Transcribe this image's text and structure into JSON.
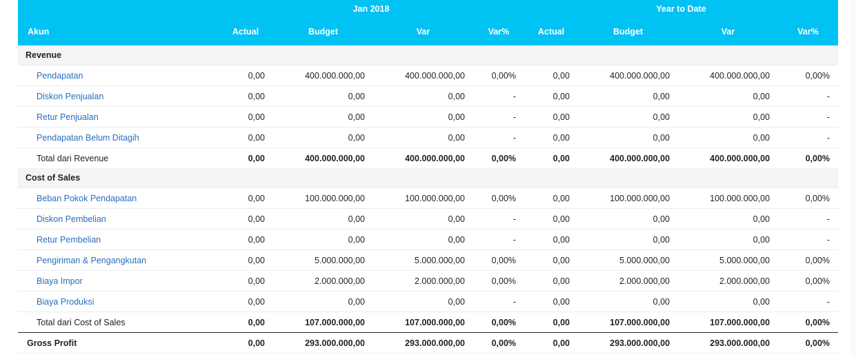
{
  "header": {
    "period_label": "Jan 2018",
    "ytd_label": "Year to Date",
    "columns": {
      "akun": "Akun",
      "actual": "Actual",
      "budget": "Budget",
      "var": "Var",
      "var_pct": "Var%"
    }
  },
  "sections": {
    "revenue": {
      "title": "Revenue",
      "rows": [
        {
          "name": "Pendapatan",
          "cells": [
            "0,00",
            "400.000.000,00",
            "400.000.000,00",
            "0,00%",
            "0,00",
            "400.000.000,00",
            "400.000.000,00",
            "0,00%"
          ]
        },
        {
          "name": "Diskon Penjualan",
          "cells": [
            "0,00",
            "0,00",
            "0,00",
            "-",
            "0,00",
            "0,00",
            "0,00",
            "-"
          ]
        },
        {
          "name": "Retur Penjualan",
          "cells": [
            "0,00",
            "0,00",
            "0,00",
            "-",
            "0,00",
            "0,00",
            "0,00",
            "-"
          ]
        },
        {
          "name": "Pendapatan Belum Ditagih",
          "cells": [
            "0,00",
            "0,00",
            "0,00",
            "-",
            "0,00",
            "0,00",
            "0,00",
            "-"
          ]
        }
      ],
      "total": {
        "name": "Total dari Revenue",
        "cells": [
          "0,00",
          "400.000.000,00",
          "400.000.000,00",
          "0,00%",
          "0,00",
          "400.000.000,00",
          "400.000.000,00",
          "0,00%"
        ]
      }
    },
    "cost_of_sales": {
      "title": "Cost of Sales",
      "rows": [
        {
          "name": "Beban Pokok Pendapatan",
          "cells": [
            "0,00",
            "100.000.000,00",
            "100.000.000,00",
            "0,00%",
            "0,00",
            "100.000.000,00",
            "100.000.000,00",
            "0,00%"
          ]
        },
        {
          "name": "Diskon Pembelian",
          "cells": [
            "0,00",
            "0,00",
            "0,00",
            "-",
            "0,00",
            "0,00",
            "0,00",
            "-"
          ]
        },
        {
          "name": "Retur Pembelian",
          "cells": [
            "0,00",
            "0,00",
            "0,00",
            "-",
            "0,00",
            "0,00",
            "0,00",
            "-"
          ]
        },
        {
          "name": "Pengiriman & Pengangkutan",
          "cells": [
            "0,00",
            "5.000.000,00",
            "5.000.000,00",
            "0,00%",
            "0,00",
            "5.000.000,00",
            "5.000.000,00",
            "0,00%"
          ]
        },
        {
          "name": "Biaya Impor",
          "cells": [
            "0,00",
            "2.000.000,00",
            "2.000.000,00",
            "0,00%",
            "0,00",
            "2.000.000,00",
            "2.000.000,00",
            "0,00%"
          ]
        },
        {
          "name": "Biaya Produksi",
          "cells": [
            "0,00",
            "0,00",
            "0,00",
            "-",
            "0,00",
            "0,00",
            "0,00",
            "-"
          ]
        }
      ],
      "total": {
        "name": "Total dari Cost of Sales",
        "cells": [
          "0,00",
          "107.000.000,00",
          "107.000.000,00",
          "0,00%",
          "0,00",
          "107.000.000,00",
          "107.000.000,00",
          "0,00%"
        ]
      }
    }
  },
  "gross_profit": {
    "name": "Gross Profit",
    "cells": [
      "0,00",
      "293.000.000,00",
      "293.000.000,00",
      "0,00%",
      "0,00",
      "293.000.000,00",
      "293.000.000,00",
      "0,00%"
    ]
  },
  "colors": {
    "header_bg": "#00c2f3",
    "link": "#2a6ebd",
    "section_bg": "#f4f4f4"
  }
}
